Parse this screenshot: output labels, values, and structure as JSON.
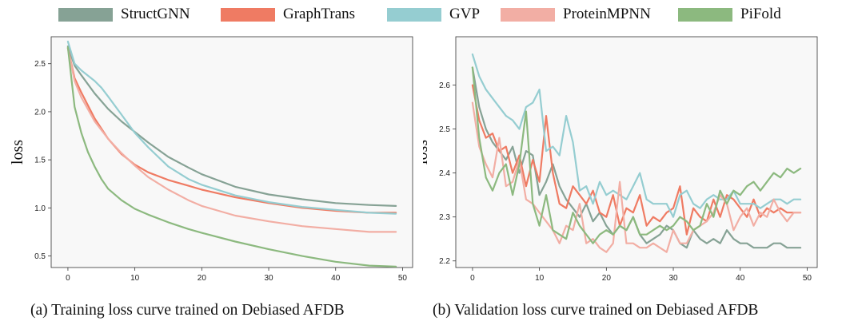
{
  "legend": [
    {
      "name": "StructGNN",
      "color": "#86a295"
    },
    {
      "name": "GraphTrans",
      "color": "#ef7b63"
    },
    {
      "name": "GVP",
      "color": "#95cdd1"
    },
    {
      "name": "ProteinMPNN",
      "color": "#f2aea4"
    },
    {
      "name": "PiFold",
      "color": "#8cb97f"
    }
  ],
  "captions": {
    "a": "(a) Training loss curve trained on Debiased AFDB",
    "b": "(b) Validation loss curve trained on Debiased AFDB"
  },
  "chart_data": [
    {
      "type": "line",
      "panel": "a",
      "title": "",
      "xlabel": "",
      "ylabel": "loss",
      "xlim": [
        -2.5,
        51.5
      ],
      "ylim": [
        0.38,
        2.78
      ],
      "xticks": [
        0,
        10,
        20,
        30,
        40,
        50
      ],
      "yticks": [
        0.5,
        1.0,
        1.5,
        2.0,
        2.5
      ],
      "ytick_labels": [
        "0.5",
        "1.0",
        "1.5",
        "2.0",
        "2.5"
      ],
      "series": [
        {
          "name": "StructGNN",
          "color": "#86a295",
          "x": [
            0,
            1,
            2,
            4,
            6,
            8,
            10,
            12,
            15,
            18,
            20,
            25,
            30,
            35,
            40,
            45,
            49
          ],
          "y": [
            2.68,
            2.48,
            2.38,
            2.19,
            2.03,
            1.9,
            1.79,
            1.68,
            1.53,
            1.42,
            1.35,
            1.22,
            1.14,
            1.09,
            1.05,
            1.03,
            1.02
          ]
        },
        {
          "name": "GraphTrans",
          "color": "#ef7b63",
          "x": [
            0,
            1,
            2,
            4,
            6,
            8,
            10,
            12,
            15,
            18,
            20,
            25,
            30,
            35,
            40,
            45,
            49
          ],
          "y": [
            2.66,
            2.35,
            2.2,
            1.93,
            1.72,
            1.56,
            1.45,
            1.37,
            1.29,
            1.23,
            1.19,
            1.11,
            1.05,
            1.0,
            0.97,
            0.95,
            0.95
          ]
        },
        {
          "name": "GVP",
          "color": "#95cdd1",
          "x": [
            0,
            1,
            2,
            4,
            5,
            6,
            8,
            10,
            12,
            15,
            18,
            20,
            25,
            30,
            35,
            40,
            45,
            49
          ],
          "y": [
            2.73,
            2.5,
            2.43,
            2.32,
            2.25,
            2.16,
            1.97,
            1.78,
            1.63,
            1.43,
            1.3,
            1.24,
            1.13,
            1.06,
            1.01,
            0.98,
            0.95,
            0.94
          ]
        },
        {
          "name": "ProteinMPNN",
          "color": "#f2aea4",
          "x": [
            0,
            1,
            2,
            4,
            6,
            8,
            10,
            12,
            15,
            18,
            20,
            25,
            30,
            35,
            40,
            45,
            49
          ],
          "y": [
            2.66,
            2.32,
            2.15,
            1.9,
            1.72,
            1.57,
            1.44,
            1.32,
            1.19,
            1.08,
            1.02,
            0.92,
            0.86,
            0.81,
            0.78,
            0.75,
            0.75
          ]
        },
        {
          "name": "PiFold",
          "color": "#8cb97f",
          "x": [
            0,
            1,
            2,
            3,
            4,
            5,
            6,
            8,
            10,
            12,
            15,
            18,
            20,
            25,
            30,
            35,
            40,
            45,
            49
          ],
          "y": [
            2.67,
            2.05,
            1.78,
            1.58,
            1.43,
            1.3,
            1.2,
            1.08,
            0.99,
            0.93,
            0.85,
            0.78,
            0.74,
            0.65,
            0.57,
            0.5,
            0.44,
            0.4,
            0.39
          ]
        }
      ]
    },
    {
      "type": "line",
      "panel": "b",
      "title": "",
      "xlabel": "",
      "ylabel": "loss",
      "xlim": [
        -2.5,
        51.5
      ],
      "ylim": [
        2.185,
        2.71
      ],
      "xticks": [
        0,
        10,
        20,
        30,
        40,
        50
      ],
      "yticks": [
        2.2,
        2.3,
        2.4,
        2.5,
        2.6
      ],
      "ytick_labels": [
        "2.2",
        "2.3",
        "2.4",
        "2.5",
        "2.6"
      ],
      "series": [
        {
          "name": "StructGNN",
          "color": "#86a295",
          "x_start": 0,
          "y": [
            2.64,
            2.55,
            2.5,
            2.47,
            2.45,
            2.43,
            2.46,
            2.4,
            2.45,
            2.44,
            2.35,
            2.38,
            2.42,
            2.37,
            2.34,
            2.32,
            2.3,
            2.33,
            2.29,
            2.31,
            2.28,
            2.26,
            2.28,
            2.27,
            2.3,
            2.26,
            2.24,
            2.25,
            2.26,
            2.28,
            2.27,
            2.24,
            2.23,
            2.27,
            2.25,
            2.24,
            2.25,
            2.24,
            2.27,
            2.25,
            2.24,
            2.24,
            2.23,
            2.23,
            2.23,
            2.24,
            2.24,
            2.23,
            2.23,
            2.23
          ]
        },
        {
          "name": "GraphTrans",
          "color": "#ef7b63",
          "x_start": 0,
          "y": [
            2.6,
            2.52,
            2.48,
            2.49,
            2.45,
            2.46,
            2.4,
            2.44,
            2.37,
            2.43,
            2.38,
            2.53,
            2.4,
            2.33,
            2.32,
            2.37,
            2.35,
            2.33,
            2.36,
            2.31,
            2.3,
            2.35,
            2.28,
            2.32,
            2.31,
            2.35,
            2.28,
            2.3,
            2.29,
            2.31,
            2.32,
            2.37,
            2.26,
            2.32,
            2.3,
            2.29,
            2.34,
            2.3,
            2.35,
            2.34,
            2.32,
            2.3,
            2.34,
            2.3,
            2.32,
            2.31,
            2.32,
            2.31,
            2.31,
            2.31
          ]
        },
        {
          "name": "GVP",
          "color": "#95cdd1",
          "x_start": 0,
          "y": [
            2.67,
            2.62,
            2.59,
            2.57,
            2.55,
            2.53,
            2.52,
            2.5,
            2.55,
            2.56,
            2.59,
            2.45,
            2.46,
            2.44,
            2.53,
            2.47,
            2.36,
            2.37,
            2.33,
            2.38,
            2.35,
            2.36,
            2.35,
            2.34,
            2.37,
            2.4,
            2.34,
            2.33,
            2.33,
            2.33,
            2.3,
            2.35,
            2.36,
            2.33,
            2.32,
            2.34,
            2.35,
            2.34,
            2.34,
            2.36,
            2.33,
            2.33,
            2.33,
            2.32,
            2.33,
            2.34,
            2.34,
            2.33,
            2.34,
            2.34
          ]
        },
        {
          "name": "ProteinMPNN",
          "color": "#f2aea4",
          "x_start": 0,
          "y": [
            2.56,
            2.46,
            2.42,
            2.39,
            2.48,
            2.37,
            2.38,
            2.43,
            2.34,
            2.33,
            2.31,
            2.29,
            2.27,
            2.24,
            2.28,
            2.27,
            2.33,
            2.24,
            2.25,
            2.23,
            2.22,
            2.24,
            2.38,
            2.24,
            2.24,
            2.23,
            2.23,
            2.24,
            2.23,
            2.22,
            2.27,
            2.24,
            2.24,
            2.27,
            2.28,
            2.29,
            2.31,
            2.35,
            2.33,
            2.27,
            2.3,
            2.32,
            2.28,
            2.31,
            2.3,
            2.34,
            2.31,
            2.29,
            2.31,
            2.31
          ]
        },
        {
          "name": "PiFold",
          "color": "#8cb97f",
          "x_start": 0,
          "y": [
            2.64,
            2.48,
            2.39,
            2.36,
            2.4,
            2.42,
            2.35,
            2.42,
            2.54,
            2.33,
            2.28,
            2.35,
            2.27,
            2.26,
            2.25,
            2.31,
            2.28,
            2.26,
            2.24,
            2.26,
            2.27,
            2.26,
            2.28,
            2.27,
            2.3,
            2.26,
            2.26,
            2.27,
            2.28,
            2.27,
            2.28,
            2.3,
            2.29,
            2.27,
            2.28,
            2.33,
            2.3,
            2.36,
            2.33,
            2.36,
            2.35,
            2.37,
            2.38,
            2.36,
            2.38,
            2.4,
            2.39,
            2.41,
            2.4,
            2.41
          ]
        }
      ]
    }
  ]
}
